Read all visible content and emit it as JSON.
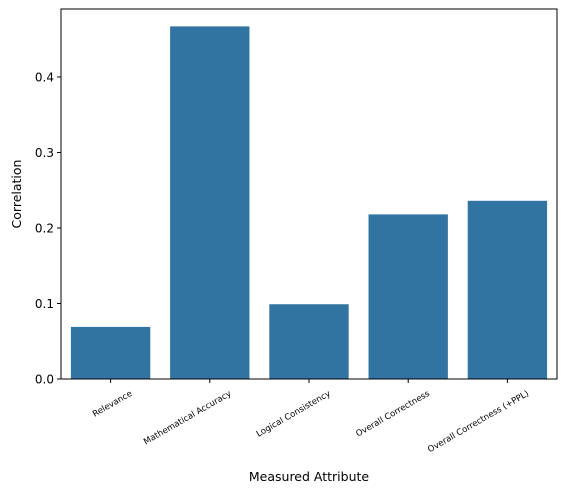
{
  "chart_data": {
    "type": "bar",
    "categories": [
      "Relevance",
      "Mathematical Accuracy",
      "Logical Consistency",
      "Overall Correctness",
      "Overall Correctness (+PPL)"
    ],
    "values": [
      0.069,
      0.467,
      0.099,
      0.218,
      0.236
    ],
    "xlabel": "Measured Attribute",
    "ylabel": "Correlation",
    "ylim": [
      0,
      0.49
    ],
    "yticks": [
      0.0,
      0.1,
      0.2,
      0.3,
      0.4
    ],
    "ytick_labels": [
      "0.0",
      "0.1",
      "0.2",
      "0.3",
      "0.4"
    ],
    "bar_color": "#3274a1",
    "grid": false,
    "legend": "none"
  }
}
